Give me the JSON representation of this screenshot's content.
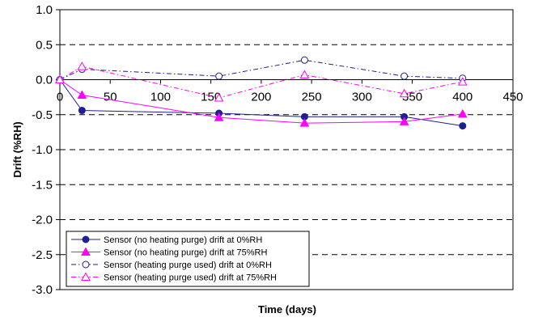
{
  "chart_data": {
    "type": "line",
    "title": "",
    "xlabel": "Time (days)",
    "ylabel": "Drift (%RH)",
    "xlim": [
      0,
      450
    ],
    "ylim": [
      -3.0,
      1.0
    ],
    "x_ticks": [
      0,
      50,
      100,
      150,
      200,
      250,
      300,
      350,
      400,
      450
    ],
    "y_ticks": [
      1.0,
      0.5,
      0.0,
      -0.5,
      -1.0,
      -1.5,
      -2.0,
      -2.5,
      -3.0
    ],
    "x_tick_labels": [
      "0",
      "50",
      "100",
      "150",
      "200",
      "250",
      "300",
      "350",
      "400",
      "450"
    ],
    "y_tick_labels": [
      "1.0",
      "0.5",
      "0.0",
      "-0.5",
      "-1.0",
      "-1.5",
      "-2.0",
      "-2.5",
      "-3.0"
    ],
    "grid": "horizontal dashed",
    "legend_position": "bottom-left",
    "series": [
      {
        "name": "Sensor (no heating purge) drift at 0%RH",
        "color": "#1f1f8f",
        "line": "solid",
        "marker": "circle-filled",
        "x": [
          0,
          22,
          158,
          243,
          342,
          400
        ],
        "y": [
          0.0,
          -0.44,
          -0.48,
          -0.53,
          -0.53,
          -0.66
        ]
      },
      {
        "name": "Sensor (no heating purge) drift at  75%RH",
        "color": "#ff00ff",
        "line": "solid",
        "marker": "triangle-filled",
        "x": [
          0,
          22,
          158,
          243,
          342,
          400
        ],
        "y": [
          0.0,
          -0.22,
          -0.54,
          -0.62,
          -0.6,
          -0.49
        ]
      },
      {
        "name": "Sensor (heating purge used) drift at 0%RH",
        "color": "#1f1f8f",
        "line": "dash-dot",
        "marker": "circle-open",
        "x": [
          0,
          22,
          158,
          243,
          342,
          400
        ],
        "y": [
          0.0,
          0.15,
          0.05,
          0.28,
          0.05,
          0.02
        ]
      },
      {
        "name": "Sensor (heating purge used) drift at 75%RH",
        "color": "#ff00ff",
        "line": "dash-dot",
        "marker": "triangle-open",
        "x": [
          0,
          22,
          158,
          243,
          342,
          400
        ],
        "y": [
          0.0,
          0.19,
          -0.26,
          0.07,
          -0.2,
          -0.03
        ]
      }
    ]
  }
}
